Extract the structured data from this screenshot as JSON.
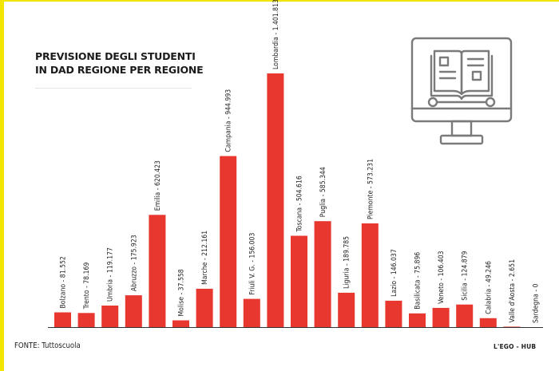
{
  "title_lines": [
    "PREVISIONE DEGLI STUDENTI",
    "IN DAD REGIONE PER REGIONE"
  ],
  "source": "FONTE: Tuttoscuola",
  "brand": "L'EGO - HUB",
  "icon": "computer-book-icon",
  "colors": {
    "bar": "#e8372f",
    "accent": "#f2e500",
    "icon": "#7a7a7a",
    "axis": "#333333"
  },
  "chart_data": {
    "type": "bar",
    "title": "PREVISIONE DEGLI STUDENTI IN DAD REGIONE PER REGIONE",
    "xlabel": "",
    "ylabel": "",
    "ylim": [
      0,
      1401813
    ],
    "grid": false,
    "legend": "none",
    "categories": [
      "Bolzano",
      "Trento",
      "Umbria",
      "Abruzzo",
      "Emilia",
      "Molise",
      "Marche",
      "Campania",
      "Friuli V. G.",
      "Lombardia",
      "Toscana",
      "Puglia",
      "Liguria",
      "Piemonte",
      "Lazio",
      "Basilicata",
      "Veneto",
      "Sicilia",
      "Calabria",
      "Valle d'Aosta",
      "Sardegna"
    ],
    "values": [
      81552,
      78169,
      119177,
      175923,
      620423,
      37558,
      212161,
      944993,
      156003,
      1401813,
      504616,
      585344,
      189785,
      573231,
      146037,
      75896,
      106403,
      124879,
      49246,
      2651,
      0
    ],
    "labels": [
      "Bolzano - 81.552",
      "Trento - 78.169",
      "Umbria - 119.177",
      "Abruzzo - 175.923",
      "Emilia - 620.423",
      "Molise - 37.558",
      "Marche - 212.161",
      "Campania - 944.993",
      "Friuli V. G. - 156.003",
      "Lombardia - 1.401.813",
      "Toscana - 504.616",
      "Puglia - 585.344",
      "Liguria - 189.785",
      "Piemonte - 573.231",
      "Lazio - 146.037",
      "Basilicata - 75.896",
      "Veneto - 106.403",
      "Sicilia - 124.879",
      "Calabria - 49.246",
      "Valle d'Aosta - 2.651",
      "Sardegna - 0"
    ]
  }
}
